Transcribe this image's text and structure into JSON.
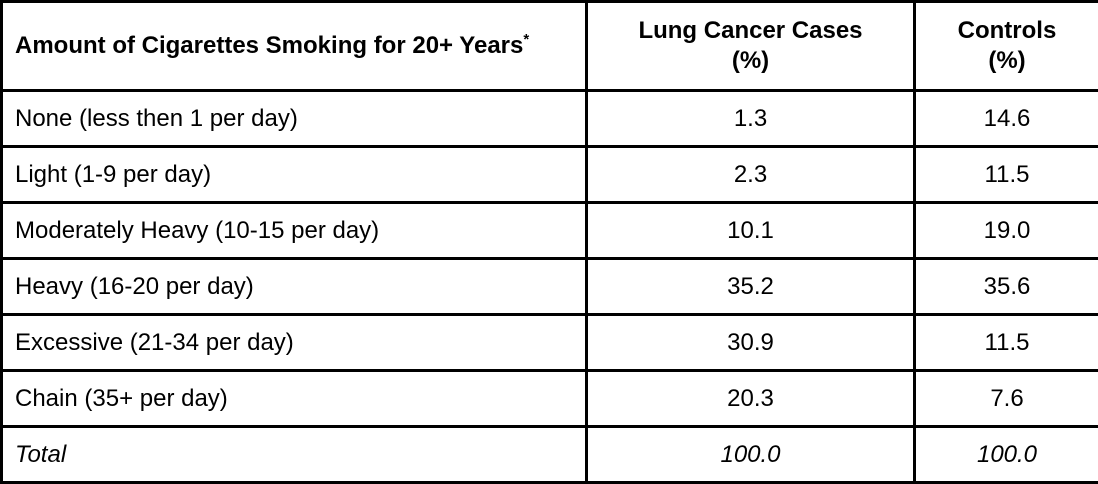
{
  "table": {
    "header": {
      "amount_label": "Amount of Cigarettes Smoking for 20+ Years",
      "amount_sup": "*",
      "cases_label": "Lung Cancer Cases",
      "cases_unit": "(%)",
      "controls_label": "Controls",
      "controls_unit": "(%)"
    },
    "rows": [
      [
        "None (less then 1 per day)",
        "1.3",
        "14.6"
      ],
      [
        "Light (1-9 per day)",
        "2.3",
        "11.5"
      ],
      [
        "Moderately Heavy (10-15 per day)",
        "10.1",
        "19.0"
      ],
      [
        "Heavy (16-20 per day)",
        "35.2",
        "35.6"
      ],
      [
        "Excessive (21-34 per day)",
        "30.9",
        "11.5"
      ],
      [
        "Chain (35+ per day)",
        "20.3",
        "7.6"
      ]
    ],
    "total_row": [
      "Total",
      "100.0",
      "100.0"
    ]
  },
  "colors": {
    "border": "#000000",
    "text": "#000000",
    "background": "#ffffff"
  },
  "chart_data": {
    "type": "table",
    "columns": [
      "Amount of Cigarettes Smoking for 20+ Years*",
      "Lung Cancer Cases (%)",
      "Controls (%)"
    ],
    "categories": [
      "None (less then 1 per day)",
      "Light (1-9 per day)",
      "Moderately Heavy (10-15 per day)",
      "Heavy (16-20 per day)",
      "Excessive (21-34 per day)",
      "Chain (35+ per day)",
      "Total"
    ],
    "series": [
      {
        "name": "Lung Cancer Cases (%)",
        "values": [
          1.3,
          2.3,
          10.1,
          35.2,
          30.9,
          20.3,
          100.0
        ]
      },
      {
        "name": "Controls (%)",
        "values": [
          14.6,
          11.5,
          19.0,
          35.6,
          11.5,
          7.6,
          100.0
        ]
      }
    ]
  }
}
